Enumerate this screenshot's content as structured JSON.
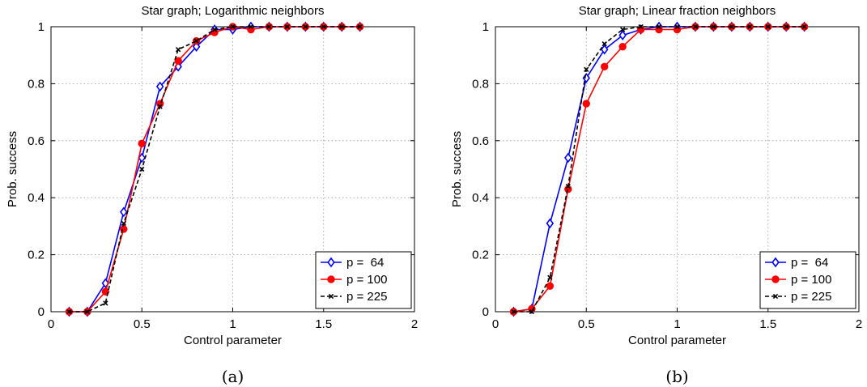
{
  "chart_data": [
    {
      "type": "line",
      "title": "Star graph; Logarithmic neighbors",
      "xlabel": "Control parameter",
      "ylabel": "Prob. success",
      "caption": "(a)",
      "xlim": [
        0,
        2
      ],
      "ylim": [
        0,
        1
      ],
      "xticks": [
        "0",
        "0.5",
        "1",
        "1.5",
        "2"
      ],
      "yticks": [
        "0",
        "0.2",
        "0.4",
        "0.6",
        "0.8",
        "1"
      ],
      "grid": true,
      "legend_position": "bottom-right",
      "x": [
        0.1,
        0.2,
        0.3,
        0.4,
        0.5,
        0.6,
        0.7,
        0.8,
        0.9,
        1.0,
        1.1,
        1.2,
        1.3,
        1.4,
        1.5,
        1.6,
        1.7
      ],
      "series": [
        {
          "name": "p =  64",
          "color": "#0000ff",
          "marker": "diamond",
          "dash": "solid",
          "values": [
            0,
            0,
            0.1,
            0.35,
            0.54,
            0.79,
            0.86,
            0.93,
            0.99,
            0.99,
            1,
            1,
            1,
            1,
            1,
            1,
            1
          ]
        },
        {
          "name": "p = 100",
          "color": "#ff0000",
          "marker": "dot",
          "dash": "solid",
          "values": [
            0,
            0,
            0.07,
            0.29,
            0.59,
            0.73,
            0.88,
            0.95,
            0.98,
            1,
            0.99,
            1,
            1,
            1,
            1,
            1,
            1
          ]
        },
        {
          "name": "p = 225",
          "color": "#000000",
          "marker": "x",
          "dash": "dashed",
          "values": [
            0,
            0,
            0.03,
            0.31,
            0.5,
            0.72,
            0.92,
            0.95,
            0.99,
            1,
            1,
            1,
            1,
            1,
            1,
            1,
            1
          ]
        }
      ]
    },
    {
      "type": "line",
      "title": "Star graph; Linear fraction neighbors",
      "xlabel": "Control parameter",
      "ylabel": "Prob. success",
      "caption": "(b)",
      "xlim": [
        0,
        2
      ],
      "ylim": [
        0,
        1
      ],
      "xticks": [
        "0",
        "0.5",
        "1",
        "1.5",
        "2"
      ],
      "yticks": [
        "0",
        "0.2",
        "0.4",
        "0.6",
        "0.8",
        "1"
      ],
      "grid": true,
      "legend_position": "bottom-right",
      "x": [
        0.1,
        0.2,
        0.3,
        0.4,
        0.5,
        0.6,
        0.7,
        0.8,
        0.9,
        1.0,
        1.1,
        1.2,
        1.3,
        1.4,
        1.5,
        1.6,
        1.7
      ],
      "series": [
        {
          "name": "p =  64",
          "color": "#0000ff",
          "marker": "diamond",
          "dash": "solid",
          "values": [
            0,
            0.01,
            0.31,
            0.54,
            0.82,
            0.92,
            0.97,
            0.99,
            1,
            1,
            1,
            1,
            1,
            1,
            1,
            1,
            1
          ]
        },
        {
          "name": "p = 100",
          "color": "#ff0000",
          "marker": "dot",
          "dash": "solid",
          "values": [
            0,
            0.01,
            0.09,
            0.43,
            0.73,
            0.86,
            0.93,
            0.99,
            0.99,
            0.99,
            1,
            1,
            1,
            1,
            1,
            1,
            1
          ]
        },
        {
          "name": "p = 225",
          "color": "#000000",
          "marker": "x",
          "dash": "dashed",
          "values": [
            0,
            0,
            0.12,
            0.44,
            0.85,
            0.94,
            0.99,
            1,
            1,
            1,
            1,
            1,
            1,
            1,
            1,
            1,
            1
          ]
        }
      ]
    }
  ]
}
